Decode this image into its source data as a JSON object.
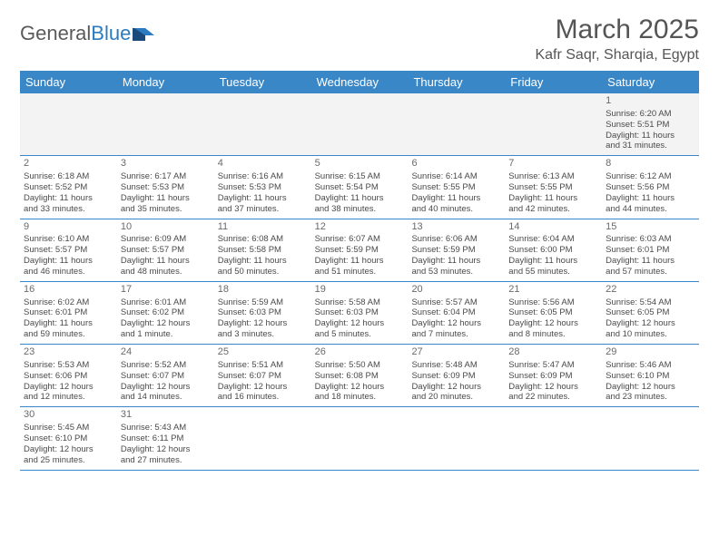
{
  "brand": {
    "name_a": "General",
    "name_b": "Blue"
  },
  "title": "March 2025",
  "location": "Kafr Saqr, Sharqia, Egypt",
  "colors": {
    "header_bg": "#3a87c7",
    "header_text": "#ffffff",
    "border": "#3a87c7",
    "text": "#4a4a4a",
    "title": "#555555",
    "firstweek_bg": "#f3f3f3"
  },
  "day_names": [
    "Sunday",
    "Monday",
    "Tuesday",
    "Wednesday",
    "Thursday",
    "Friday",
    "Saturday"
  ],
  "weeks": [
    [
      null,
      null,
      null,
      null,
      null,
      null,
      {
        "n": "1",
        "sr": "Sunrise: 6:20 AM",
        "ss": "Sunset: 5:51 PM",
        "d1": "Daylight: 11 hours",
        "d2": "and 31 minutes."
      }
    ],
    [
      {
        "n": "2",
        "sr": "Sunrise: 6:18 AM",
        "ss": "Sunset: 5:52 PM",
        "d1": "Daylight: 11 hours",
        "d2": "and 33 minutes."
      },
      {
        "n": "3",
        "sr": "Sunrise: 6:17 AM",
        "ss": "Sunset: 5:53 PM",
        "d1": "Daylight: 11 hours",
        "d2": "and 35 minutes."
      },
      {
        "n": "4",
        "sr": "Sunrise: 6:16 AM",
        "ss": "Sunset: 5:53 PM",
        "d1": "Daylight: 11 hours",
        "d2": "and 37 minutes."
      },
      {
        "n": "5",
        "sr": "Sunrise: 6:15 AM",
        "ss": "Sunset: 5:54 PM",
        "d1": "Daylight: 11 hours",
        "d2": "and 38 minutes."
      },
      {
        "n": "6",
        "sr": "Sunrise: 6:14 AM",
        "ss": "Sunset: 5:55 PM",
        "d1": "Daylight: 11 hours",
        "d2": "and 40 minutes."
      },
      {
        "n": "7",
        "sr": "Sunrise: 6:13 AM",
        "ss": "Sunset: 5:55 PM",
        "d1": "Daylight: 11 hours",
        "d2": "and 42 minutes."
      },
      {
        "n": "8",
        "sr": "Sunrise: 6:12 AM",
        "ss": "Sunset: 5:56 PM",
        "d1": "Daylight: 11 hours",
        "d2": "and 44 minutes."
      }
    ],
    [
      {
        "n": "9",
        "sr": "Sunrise: 6:10 AM",
        "ss": "Sunset: 5:57 PM",
        "d1": "Daylight: 11 hours",
        "d2": "and 46 minutes."
      },
      {
        "n": "10",
        "sr": "Sunrise: 6:09 AM",
        "ss": "Sunset: 5:57 PM",
        "d1": "Daylight: 11 hours",
        "d2": "and 48 minutes."
      },
      {
        "n": "11",
        "sr": "Sunrise: 6:08 AM",
        "ss": "Sunset: 5:58 PM",
        "d1": "Daylight: 11 hours",
        "d2": "and 50 minutes."
      },
      {
        "n": "12",
        "sr": "Sunrise: 6:07 AM",
        "ss": "Sunset: 5:59 PM",
        "d1": "Daylight: 11 hours",
        "d2": "and 51 minutes."
      },
      {
        "n": "13",
        "sr": "Sunrise: 6:06 AM",
        "ss": "Sunset: 5:59 PM",
        "d1": "Daylight: 11 hours",
        "d2": "and 53 minutes."
      },
      {
        "n": "14",
        "sr": "Sunrise: 6:04 AM",
        "ss": "Sunset: 6:00 PM",
        "d1": "Daylight: 11 hours",
        "d2": "and 55 minutes."
      },
      {
        "n": "15",
        "sr": "Sunrise: 6:03 AM",
        "ss": "Sunset: 6:01 PM",
        "d1": "Daylight: 11 hours",
        "d2": "and 57 minutes."
      }
    ],
    [
      {
        "n": "16",
        "sr": "Sunrise: 6:02 AM",
        "ss": "Sunset: 6:01 PM",
        "d1": "Daylight: 11 hours",
        "d2": "and 59 minutes."
      },
      {
        "n": "17",
        "sr": "Sunrise: 6:01 AM",
        "ss": "Sunset: 6:02 PM",
        "d1": "Daylight: 12 hours",
        "d2": "and 1 minute."
      },
      {
        "n": "18",
        "sr": "Sunrise: 5:59 AM",
        "ss": "Sunset: 6:03 PM",
        "d1": "Daylight: 12 hours",
        "d2": "and 3 minutes."
      },
      {
        "n": "19",
        "sr": "Sunrise: 5:58 AM",
        "ss": "Sunset: 6:03 PM",
        "d1": "Daylight: 12 hours",
        "d2": "and 5 minutes."
      },
      {
        "n": "20",
        "sr": "Sunrise: 5:57 AM",
        "ss": "Sunset: 6:04 PM",
        "d1": "Daylight: 12 hours",
        "d2": "and 7 minutes."
      },
      {
        "n": "21",
        "sr": "Sunrise: 5:56 AM",
        "ss": "Sunset: 6:05 PM",
        "d1": "Daylight: 12 hours",
        "d2": "and 8 minutes."
      },
      {
        "n": "22",
        "sr": "Sunrise: 5:54 AM",
        "ss": "Sunset: 6:05 PM",
        "d1": "Daylight: 12 hours",
        "d2": "and 10 minutes."
      }
    ],
    [
      {
        "n": "23",
        "sr": "Sunrise: 5:53 AM",
        "ss": "Sunset: 6:06 PM",
        "d1": "Daylight: 12 hours",
        "d2": "and 12 minutes."
      },
      {
        "n": "24",
        "sr": "Sunrise: 5:52 AM",
        "ss": "Sunset: 6:07 PM",
        "d1": "Daylight: 12 hours",
        "d2": "and 14 minutes."
      },
      {
        "n": "25",
        "sr": "Sunrise: 5:51 AM",
        "ss": "Sunset: 6:07 PM",
        "d1": "Daylight: 12 hours",
        "d2": "and 16 minutes."
      },
      {
        "n": "26",
        "sr": "Sunrise: 5:50 AM",
        "ss": "Sunset: 6:08 PM",
        "d1": "Daylight: 12 hours",
        "d2": "and 18 minutes."
      },
      {
        "n": "27",
        "sr": "Sunrise: 5:48 AM",
        "ss": "Sunset: 6:09 PM",
        "d1": "Daylight: 12 hours",
        "d2": "and 20 minutes."
      },
      {
        "n": "28",
        "sr": "Sunrise: 5:47 AM",
        "ss": "Sunset: 6:09 PM",
        "d1": "Daylight: 12 hours",
        "d2": "and 22 minutes."
      },
      {
        "n": "29",
        "sr": "Sunrise: 5:46 AM",
        "ss": "Sunset: 6:10 PM",
        "d1": "Daylight: 12 hours",
        "d2": "and 23 minutes."
      }
    ],
    [
      {
        "n": "30",
        "sr": "Sunrise: 5:45 AM",
        "ss": "Sunset: 6:10 PM",
        "d1": "Daylight: 12 hours",
        "d2": "and 25 minutes."
      },
      {
        "n": "31",
        "sr": "Sunrise: 5:43 AM",
        "ss": "Sunset: 6:11 PM",
        "d1": "Daylight: 12 hours",
        "d2": "and 27 minutes."
      },
      null,
      null,
      null,
      null,
      null
    ]
  ]
}
